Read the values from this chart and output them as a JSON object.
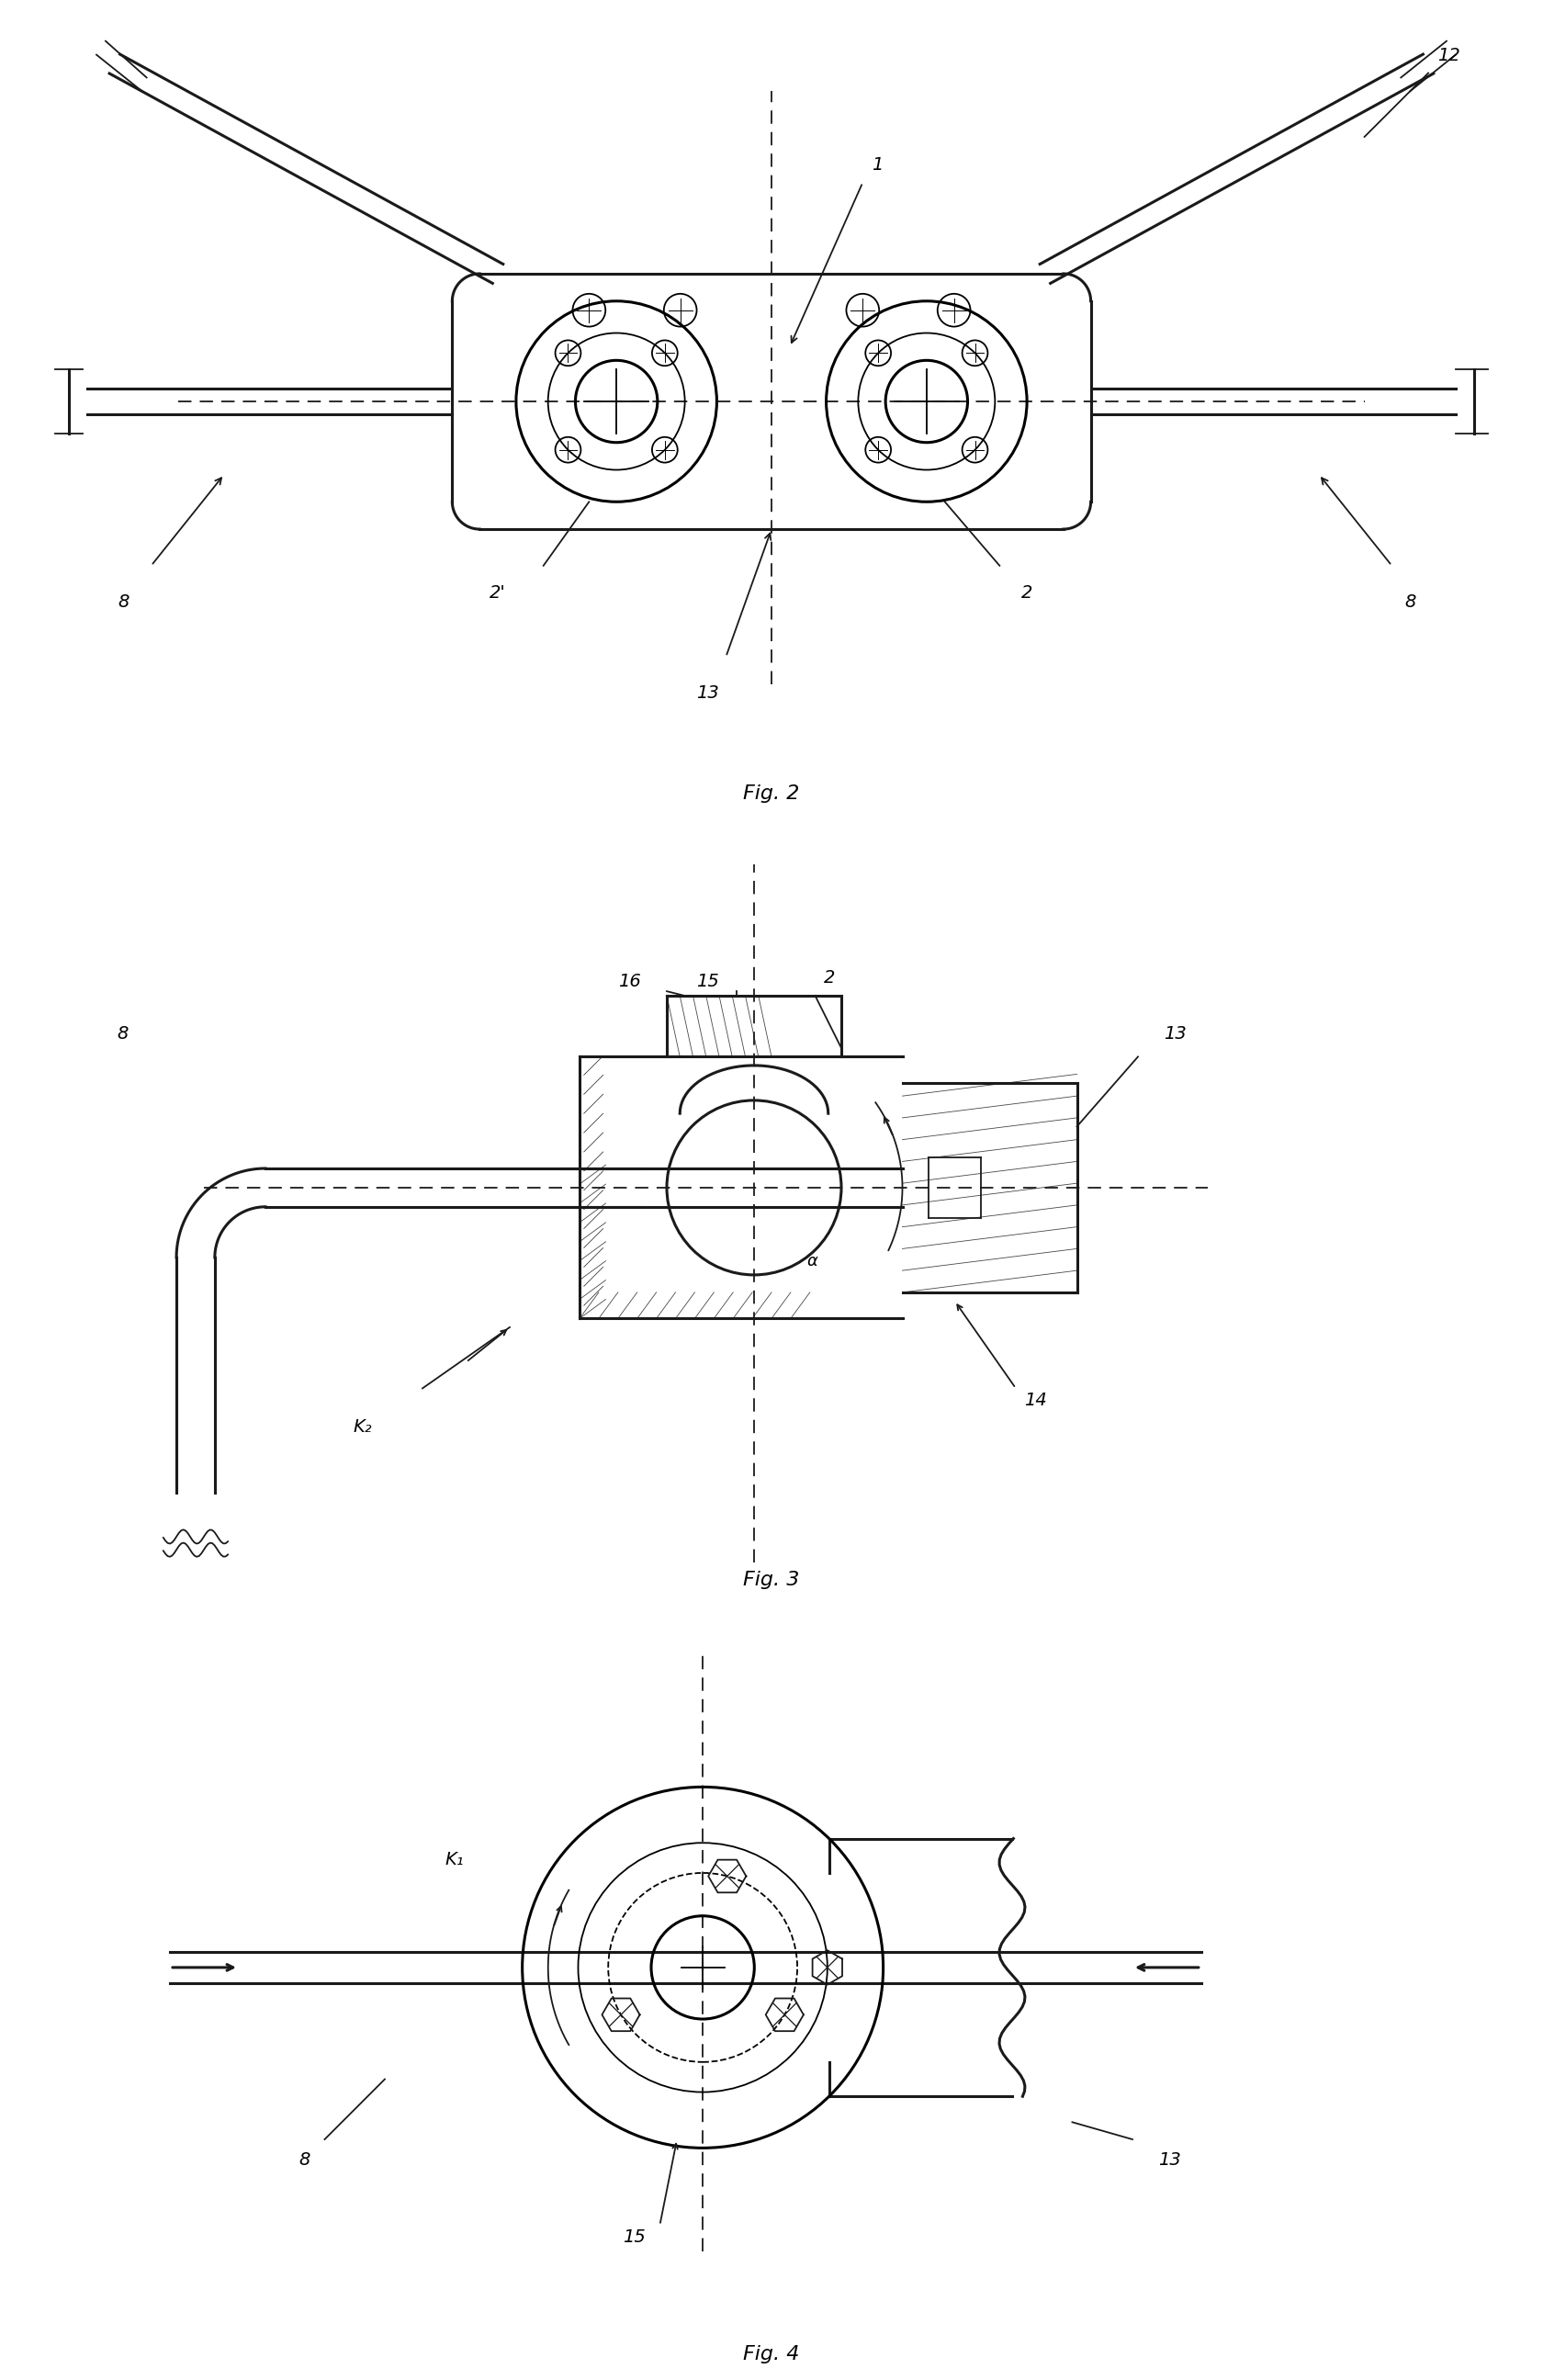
{
  "bg_color": "#ffffff",
  "line_color": "#1a1a1a",
  "fig2_caption": "Fig. 2",
  "fig3_caption": "Fig. 3",
  "fig4_caption": "Fig. 4",
  "label_fontsize": 14,
  "caption_fontsize": 16
}
